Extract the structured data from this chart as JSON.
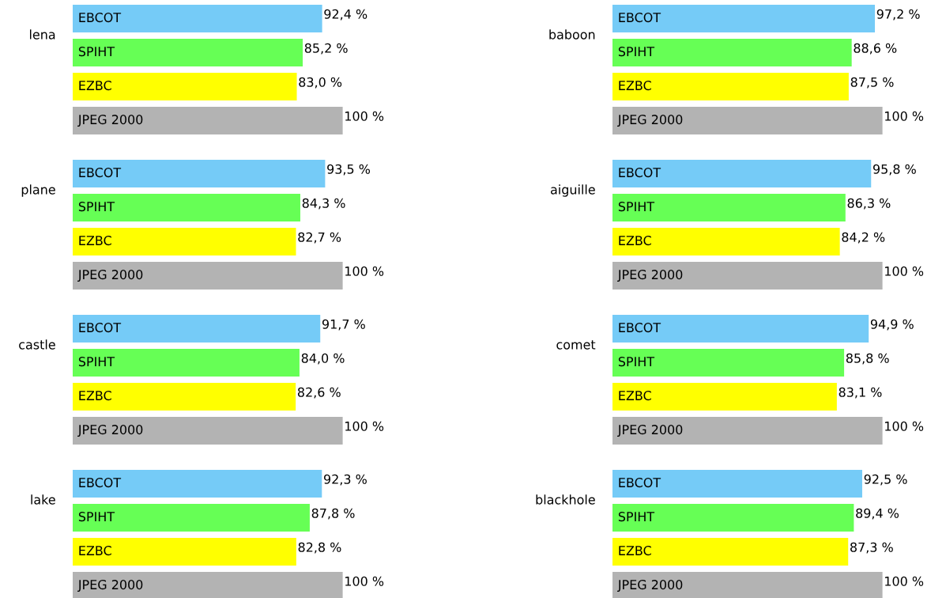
{
  "chart_data": [
    {
      "type": "bar",
      "orientation": "horizontal",
      "title": "lena",
      "categories": [
        "EBCOT",
        "SPIHT",
        "EZBC",
        "JPEG 2000"
      ],
      "values": [
        92.4,
        85.2,
        83.0,
        100
      ],
      "value_labels": [
        "92,4 %",
        "85,2 %",
        "83,0 %",
        "100 %"
      ],
      "colors": [
        "#75cbf7",
        "#66ff55",
        "#ffff00",
        "#b3b3b3"
      ]
    },
    {
      "type": "bar",
      "orientation": "horizontal",
      "title": "baboon",
      "categories": [
        "EBCOT",
        "SPIHT",
        "EZBC",
        "JPEG 2000"
      ],
      "values": [
        97.2,
        88.6,
        87.5,
        100
      ],
      "value_labels": [
        "97,2 %",
        "88,6 %",
        "87,5 %",
        "100 %"
      ],
      "colors": [
        "#75cbf7",
        "#66ff55",
        "#ffff00",
        "#b3b3b3"
      ]
    },
    {
      "type": "bar",
      "orientation": "horizontal",
      "title": "plane",
      "categories": [
        "EBCOT",
        "SPIHT",
        "EZBC",
        "JPEG 2000"
      ],
      "values": [
        93.5,
        84.3,
        82.7,
        100
      ],
      "value_labels": [
        "93,5 %",
        "84,3 %",
        "82,7 %",
        "100 %"
      ],
      "colors": [
        "#75cbf7",
        "#66ff55",
        "#ffff00",
        "#b3b3b3"
      ]
    },
    {
      "type": "bar",
      "orientation": "horizontal",
      "title": "aiguille",
      "categories": [
        "EBCOT",
        "SPIHT",
        "EZBC",
        "JPEG 2000"
      ],
      "values": [
        95.8,
        86.3,
        84.2,
        100
      ],
      "value_labels": [
        "95,8 %",
        "86,3 %",
        "84,2 %",
        "100 %"
      ],
      "colors": [
        "#75cbf7",
        "#66ff55",
        "#ffff00",
        "#b3b3b3"
      ]
    },
    {
      "type": "bar",
      "orientation": "horizontal",
      "title": "castle",
      "categories": [
        "EBCOT",
        "SPIHT",
        "EZBC",
        "JPEG 2000"
      ],
      "values": [
        91.7,
        84.0,
        82.6,
        100
      ],
      "value_labels": [
        "91,7 %",
        "84,0 %",
        "82,6 %",
        "100 %"
      ],
      "colors": [
        "#75cbf7",
        "#66ff55",
        "#ffff00",
        "#b3b3b3"
      ]
    },
    {
      "type": "bar",
      "orientation": "horizontal",
      "title": "comet",
      "categories": [
        "EBCOT",
        "SPIHT",
        "EZBC",
        "JPEG 2000"
      ],
      "values": [
        94.9,
        85.8,
        83.1,
        100
      ],
      "value_labels": [
        "94,9 %",
        "85,8 %",
        "83,1 %",
        "100 %"
      ],
      "colors": [
        "#75cbf7",
        "#66ff55",
        "#ffff00",
        "#b3b3b3"
      ]
    },
    {
      "type": "bar",
      "orientation": "horizontal",
      "title": "lake",
      "categories": [
        "EBCOT",
        "SPIHT",
        "EZBC",
        "JPEG 2000"
      ],
      "values": [
        92.3,
        87.8,
        82.8,
        100
      ],
      "value_labels": [
        "92,3 %",
        "87,8 %",
        "82,8 %",
        "100 %"
      ],
      "colors": [
        "#75cbf7",
        "#66ff55",
        "#ffff00",
        "#b3b3b3"
      ]
    },
    {
      "type": "bar",
      "orientation": "horizontal",
      "title": "blackhole",
      "categories": [
        "EBCOT",
        "SPIHT",
        "EZBC",
        "JPEG 2000"
      ],
      "values": [
        92.5,
        89.4,
        87.3,
        100
      ],
      "value_labels": [
        "92,5 %",
        "89,4 %",
        "87,3 %",
        "100 %"
      ],
      "colors": [
        "#75cbf7",
        "#66ff55",
        "#ffff00",
        "#b3b3b3"
      ]
    }
  ]
}
